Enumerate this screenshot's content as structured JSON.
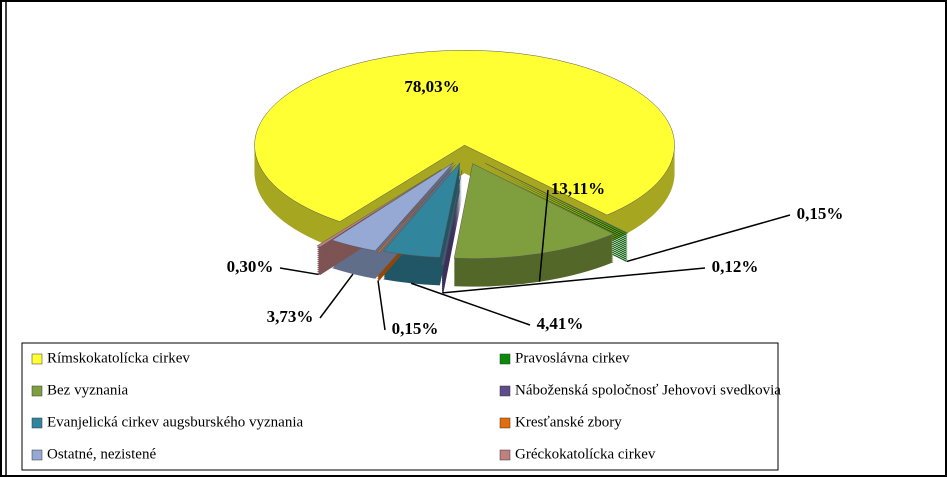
{
  "chart_data": {
    "type": "pie",
    "categories": [
      "Rímskokatolícka cirkev",
      "Pravoslávna cirkev",
      "Bez vyznania",
      "Náboženská spoločnosť Jehovovi svedkovia",
      "Evanjelická cirkev augsburského vyznania",
      "Kresťanské zbory",
      "Ostatné, nezistené",
      "Gréckokatolícka cirkev"
    ],
    "values": [
      78.03,
      0.15,
      13.11,
      0.12,
      4.41,
      0.15,
      3.73,
      0.3
    ],
    "value_labels": [
      "78,03%",
      "0,15%",
      "13,11%",
      "0,12%",
      "4,41%",
      "0,15%",
      "3,73%",
      "0,30%"
    ],
    "colors": [
      "#ffff33",
      "#0a8a0a",
      "#7f9f3f",
      "#5f4a8b",
      "#31859c",
      "#e46c0a",
      "#95a9d4",
      "#c0807f"
    ],
    "legend": "bottom"
  }
}
